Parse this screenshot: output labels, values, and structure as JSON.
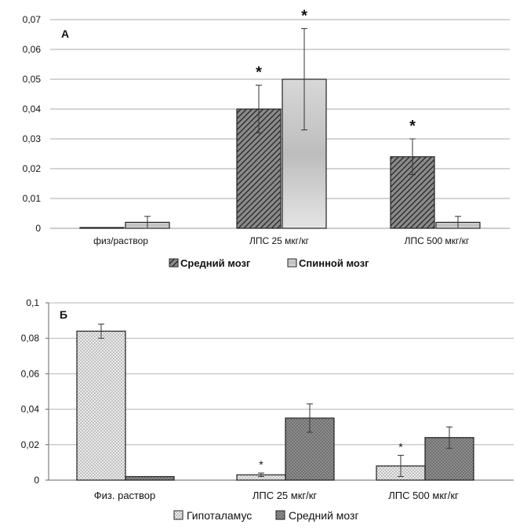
{
  "chart_data": [
    {
      "type": "bar",
      "panel_label": "А",
      "categories": [
        "физ/раствор",
        "ЛПС 25 мкг/кг",
        "ЛПС 500 мкг/кг"
      ],
      "series": [
        {
          "name": "Средний мозг",
          "values": [
            0.0,
            0.04,
            0.024
          ],
          "errors": [
            0.0,
            0.008,
            0.006
          ],
          "significance": [
            "",
            "*",
            "*"
          ],
          "color": "#555555"
        },
        {
          "name": "Спинной мозг",
          "values": [
            0.002,
            0.05,
            0.002
          ],
          "errors": [
            0.002,
            0.017,
            0.002
          ],
          "significance": [
            "",
            "*",
            ""
          ],
          "color": "#c8c8c8"
        }
      ],
      "ylim": [
        0,
        0.07
      ],
      "yticks": [
        "0",
        "0,01",
        "0,02",
        "0,03",
        "0,04",
        "0,05",
        "0,06",
        "0,07"
      ],
      "grid": true,
      "legend_position": "bottom"
    },
    {
      "type": "bar",
      "panel_label": "Б",
      "categories": [
        "Физ. раствор",
        "ЛПС 25 мкг/кг",
        "ЛПС 500 мкг/кг"
      ],
      "series": [
        {
          "name": "Гипоталамус",
          "values": [
            0.084,
            0.003,
            0.008
          ],
          "errors": [
            0.004,
            0.001,
            0.006
          ],
          "significance": [
            "",
            "*",
            "*"
          ],
          "color": "#e2e2e2"
        },
        {
          "name": "Средний мозг",
          "values": [
            0.002,
            0.035,
            0.024
          ],
          "errors": [
            0.0,
            0.008,
            0.006
          ],
          "significance": [
            "",
            "",
            ""
          ],
          "color": "#8a8a8a"
        }
      ],
      "ylim": [
        0,
        0.1
      ],
      "yticks": [
        "0",
        "0,02",
        "0,04",
        "0,06",
        "0,08",
        "0,1"
      ],
      "grid": true,
      "legend_position": "bottom"
    }
  ]
}
